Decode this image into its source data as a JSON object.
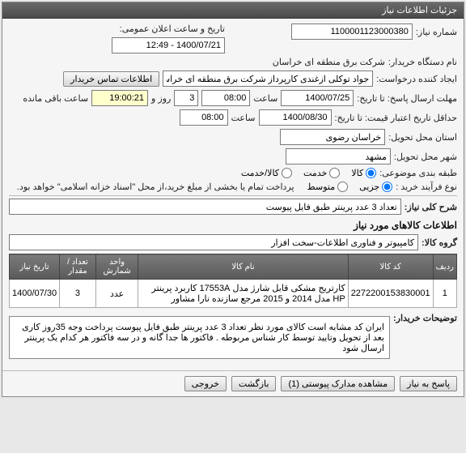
{
  "panel_title": "جزئیات اطلاعات نیاز",
  "labels": {
    "need_no": "شماره نیاز:",
    "buyer_org": "نام دستگاه خریدار:",
    "creator": "ایجاد کننده درخواست:",
    "deadline": "مهلت ارسال پاسخ: تا تاریخ:",
    "validity": "حداقل تاریخ اعتبار قیمت: تا تاریخ:",
    "province": "استان محل تحویل:",
    "city": "شهر محل تحویل:",
    "category": "طبقه بندی موضوعی:",
    "buy_type": "نوع فرآیند خرید :",
    "public_date": "تاریخ و ساعت اعلان عمومی:",
    "hour": "ساعت",
    "day_and": "روز و",
    "remain": "ساعت باقی مانده",
    "contact_btn": "اطلاعات تماس خریدار",
    "summary": "شرح کلی نیاز:",
    "items_title": "اطلاعات کالاهای مورد نیاز",
    "group": "گروه کالا:",
    "buyer_notes": "توضیحات خریدار:",
    "cat_goods": "کالا",
    "cat_service": "خدمت",
    "cat_both": "کالا/خدمت",
    "bt_partial": "جزیی",
    "bt_medium": "متوسط",
    "bt_note": "پرداخت تمام یا بخشی از مبلغ خرید،از محل \"اسناد خزانه اسلامی\" خواهد بود."
  },
  "values": {
    "need_no": "1100001123000380",
    "buyer_org": "شرکت برق منطقه ای خراسان",
    "creator": "جواد توکلی ازغندی کارپرداز شرکت برق منطقه ای خراسان",
    "deadline_date": "1400/07/25",
    "deadline_time": "08:00",
    "deadline_days": "3",
    "deadline_remain": "19:00:21",
    "validity_date": "1400/08/30",
    "validity_time": "08:00",
    "province": "خراسان رضوی",
    "city": "مشهد",
    "public_date": "1400/07/21 - 12:49",
    "summary": "تعداد 3 عدد پرینتر طبق فایل پیوست",
    "group": "کامپیوتر و فناوری اطلاعات-سخت افزار",
    "buyer_notes": "ایران کد مشابه است کالای مورد نظر تعداد 3 عدد پرینتر طبق فایل پیوست پرداخت وجه 35روز کاری بعد از تحویل وتایید توسط کار شناس مربوطه . فاکتور ها جدا گانه و در سه فاکتور هر کدام یک پرینتر ارسال شود"
  },
  "radios": {
    "category": "goods",
    "buy_type": "partial"
  },
  "table": {
    "cols": [
      "ردیف",
      "کد کالا",
      "نام کالا",
      "واحد شمارش",
      "تعداد / مقدار",
      "تاریخ نیاز"
    ],
    "rows": [
      [
        "1",
        "2272200153830001",
        "کارتریج مشکی قابل شارژ مدل 17553A کاربرد پرینتر HP مدل 2014 و 2015 مرجع سازنده نارا مشاور",
        "عدد",
        "3",
        "1400/07/30"
      ]
    ]
  },
  "buttons": {
    "reply": "پاسخ به نیاز",
    "attachments": "مشاهده مدارک پیوستی (1)",
    "back": "بازگشت",
    "output": "خروجی"
  },
  "colors": {
    "header_bg": "#555555",
    "yellow": "#ffffcc"
  }
}
